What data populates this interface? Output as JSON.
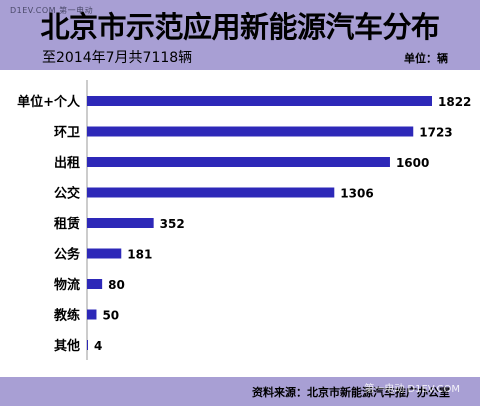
{
  "header": {
    "title": "北京市示范应用新能源汽车分布",
    "subtitle": "至2014年7月共7118辆",
    "unit": "单位：辆",
    "watermark": "D1EV.COM 第一电动"
  },
  "footer": {
    "source": "资料来源：北京市新能源汽车推广办公室",
    "watermark": "第一电动 D1EV.COM"
  },
  "colors": {
    "bar": "#2d28b8",
    "band": "#a89fd4",
    "axis": "#999999"
  },
  "chart_data": {
    "type": "bar",
    "orientation": "horizontal",
    "categories": [
      "单位+个人",
      "环卫",
      "出租",
      "公交",
      "租赁",
      "公务",
      "物流",
      "教练",
      "其他"
    ],
    "values": [
      1822,
      1723,
      1600,
      1306,
      352,
      181,
      80,
      50,
      4
    ],
    "title": "北京市示范应用新能源汽车分布",
    "xlabel": "",
    "ylabel": "",
    "xlim": [
      0,
      1822
    ],
    "grid": false,
    "data_labels": true
  }
}
